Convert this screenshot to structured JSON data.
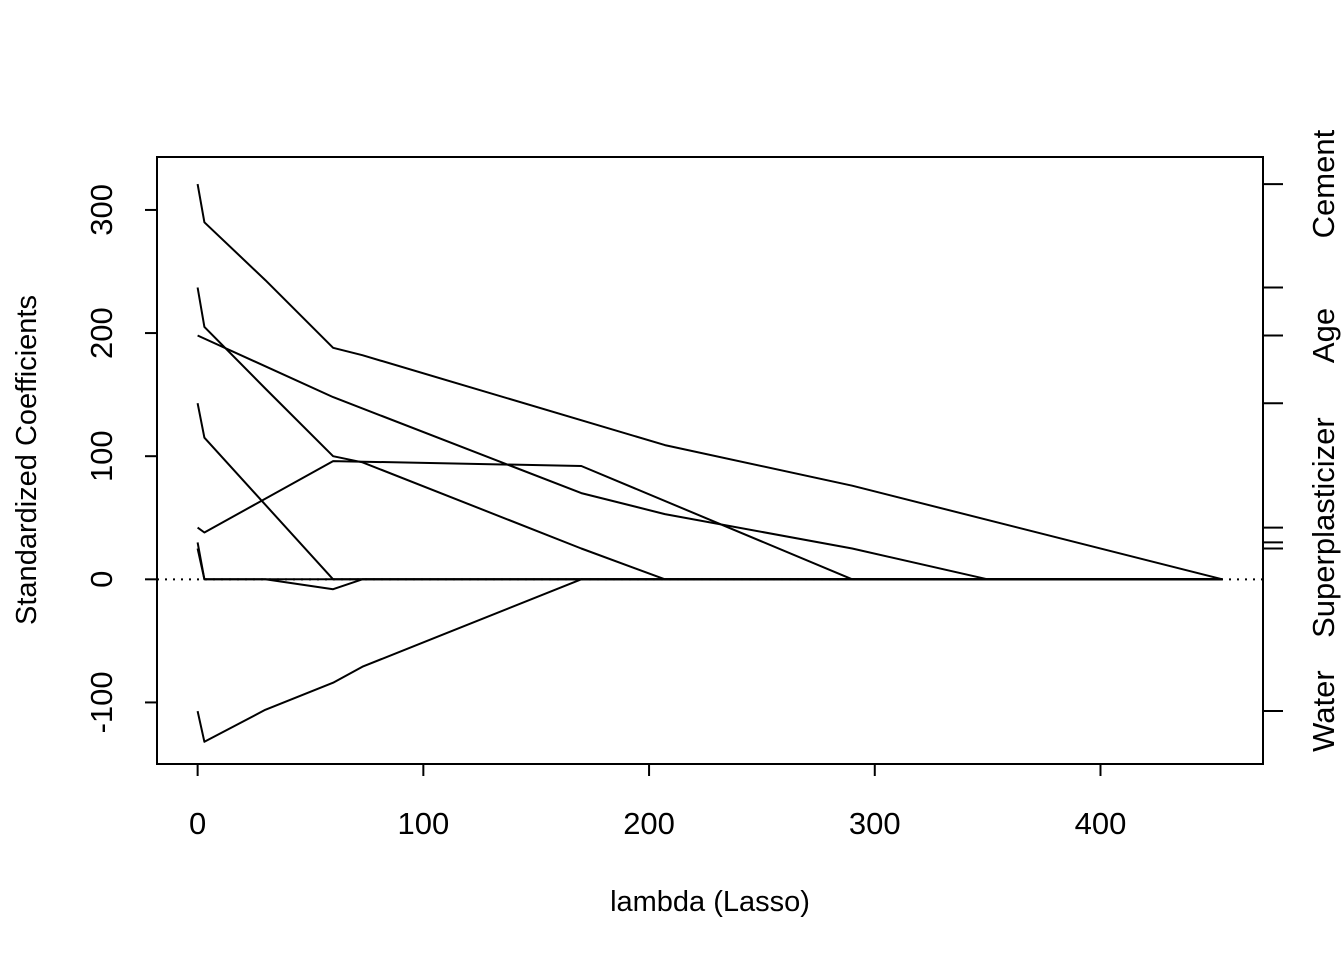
{
  "chart_data": {
    "type": "line",
    "title": "",
    "xlabel": "lambda (Lasso)",
    "ylabel": "Standardized Coefficients",
    "xlim": [
      -18,
      472
    ],
    "ylim": [
      -150,
      343
    ],
    "x_ticks": [
      0,
      100,
      200,
      300,
      400
    ],
    "y_ticks": [
      -100,
      0,
      100,
      200,
      300
    ],
    "x_tick_labels": [
      "0",
      "100",
      "200",
      "300",
      "400"
    ],
    "y_tick_labels": [
      "-100",
      "0",
      "100",
      "200",
      "300"
    ],
    "zero_reference_line": true,
    "grid": false,
    "legend": "none",
    "series": [
      {
        "x": [
          0,
          3,
          30,
          60,
          73,
          207,
          290,
          454
        ],
        "y": [
          321,
          290,
          243,
          188,
          182,
          109,
          76,
          0
        ]
      },
      {
        "x": [
          0,
          60,
          170,
          207,
          290,
          350,
          454
        ],
        "y": [
          198,
          148,
          70,
          53,
          25,
          0,
          0
        ]
      },
      {
        "x": [
          0,
          3,
          30,
          60,
          73,
          170,
          207,
          454
        ],
        "y": [
          237,
          205,
          155,
          100,
          95,
          25,
          0,
          0
        ]
      },
      {
        "x": [
          0,
          3,
          60,
          454
        ],
        "y": [
          143,
          115,
          0,
          0
        ]
      },
      {
        "x": [
          0,
          3,
          60,
          170,
          290,
          454
        ],
        "y": [
          42,
          38,
          96,
          92,
          0,
          0
        ]
      },
      {
        "x": [
          0,
          3,
          30,
          60,
          73,
          454
        ],
        "y": [
          30,
          0,
          0,
          -8,
          0,
          0
        ]
      },
      {
        "x": [
          0,
          3,
          60,
          454
        ],
        "y": [
          25,
          0,
          0,
          0
        ]
      },
      {
        "x": [
          0,
          3,
          30,
          60,
          73,
          170,
          454
        ],
        "y": [
          -107,
          -132,
          -106,
          -84,
          -71,
          0,
          0
        ]
      }
    ],
    "right_axis": {
      "tick_values": [
        -107,
        25,
        30,
        42,
        143,
        198,
        237,
        321
      ],
      "labels": [
        {
          "text": "Cement",
          "at": 321
        },
        {
          "text": "Age",
          "at": 198
        },
        {
          "text": "Superplasticizer",
          "at": 42
        },
        {
          "text": "Water",
          "at": -107
        }
      ]
    }
  }
}
